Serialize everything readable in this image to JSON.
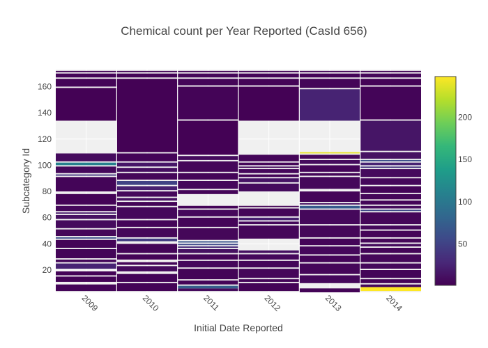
{
  "chart_data": {
    "type": "heatmap",
    "title": "Chemical count per Year Reported (CasId 656)",
    "xlabel": "Initial Date Reported",
    "ylabel": "Subcategory Id",
    "categories": [
      "2009",
      "2010",
      "2011",
      "2012",
      "2013",
      "2014"
    ],
    "ylim": [
      3,
      173
    ],
    "yticks": [
      20,
      40,
      60,
      80,
      100,
      120,
      140,
      160
    ],
    "colorscale": "Viridis",
    "colorscale_stops": [
      "#440154",
      "#482878",
      "#3e4989",
      "#31688e",
      "#26828e",
      "#1f9e89",
      "#35b779",
      "#6ece58",
      "#b5de2b",
      "#fde725"
    ],
    "zlim": [
      1,
      248
    ],
    "colorbar_ticks": [
      50,
      100,
      150,
      200
    ],
    "missing_color": "#f0f0f0",
    "columns": [
      {
        "year": "2009",
        "cells": [
          [
            4,
            9,
            4
          ],
          [
            11,
            15,
            3
          ],
          [
            16,
            19,
            3
          ],
          [
            21,
            25,
            25
          ],
          [
            26,
            28,
            6
          ],
          [
            29,
            36,
            4
          ],
          [
            37,
            43,
            3
          ],
          [
            44,
            45,
            60
          ],
          [
            46,
            51,
            5
          ],
          [
            52,
            58,
            8
          ],
          [
            59,
            62,
            12
          ],
          [
            63,
            64,
            18
          ],
          [
            65,
            69,
            6
          ],
          [
            70,
            78,
            3
          ],
          [
            80,
            91,
            4
          ],
          [
            92,
            93,
            40
          ],
          [
            94,
            99,
            6
          ],
          [
            100,
            102,
            110
          ],
          [
            103,
            109,
            8
          ],
          [
            134,
            159,
            2
          ],
          [
            160,
            166,
            3
          ],
          [
            167,
            170,
            4
          ],
          [
            171,
            172,
            5
          ]
        ]
      },
      {
        "year": "2010",
        "cells": [
          [
            4,
            10,
            3
          ],
          [
            11,
            17,
            4
          ],
          [
            19,
            23,
            8
          ],
          [
            24,
            26,
            5
          ],
          [
            28,
            32,
            3
          ],
          [
            33,
            40,
            4
          ],
          [
            42,
            44,
            45
          ],
          [
            45,
            52,
            5
          ],
          [
            53,
            58,
            4
          ],
          [
            59,
            68,
            6
          ],
          [
            69,
            72,
            3
          ],
          [
            73,
            75,
            12
          ],
          [
            76,
            80,
            6
          ],
          [
            81,
            84,
            22
          ],
          [
            85,
            88,
            50
          ],
          [
            89,
            94,
            5
          ],
          [
            95,
            98,
            10
          ],
          [
            99,
            102,
            16
          ],
          [
            103,
            109,
            4
          ],
          [
            110,
            166,
            2
          ],
          [
            167,
            170,
            3
          ],
          [
            171,
            172,
            5
          ]
        ]
      },
      {
        "year": "2011",
        "cells": [
          [
            4,
            6,
            8
          ],
          [
            6,
            8,
            75
          ],
          [
            9,
            12,
            4
          ],
          [
            13,
            21,
            3
          ],
          [
            22,
            27,
            6
          ],
          [
            28,
            32,
            4
          ],
          [
            33,
            36,
            12
          ],
          [
            37,
            38,
            30
          ],
          [
            39,
            40,
            55
          ],
          [
            41,
            42,
            65
          ],
          [
            43,
            52,
            5
          ],
          [
            53,
            60,
            4
          ],
          [
            61,
            66,
            6
          ],
          [
            67,
            69,
            3
          ],
          [
            78,
            81,
            4
          ],
          [
            82,
            88,
            6
          ],
          [
            89,
            94,
            4
          ],
          [
            95,
            103,
            5
          ],
          [
            104,
            107,
            8
          ],
          [
            108,
            134,
            2
          ],
          [
            135,
            160,
            3
          ],
          [
            161,
            166,
            4
          ],
          [
            167,
            170,
            5
          ],
          [
            171,
            172,
            3
          ]
        ]
      },
      {
        "year": "2012",
        "cells": [
          [
            4,
            10,
            3
          ],
          [
            11,
            13,
            4
          ],
          [
            14,
            21,
            5
          ],
          [
            22,
            27,
            4
          ],
          [
            28,
            32,
            6
          ],
          [
            33,
            35,
            12
          ],
          [
            44,
            54,
            5
          ],
          [
            55,
            57,
            6
          ],
          [
            58,
            60,
            22
          ],
          [
            61,
            67,
            4
          ],
          [
            68,
            69,
            3
          ],
          [
            80,
            86,
            8
          ],
          [
            87,
            90,
            14
          ],
          [
            91,
            93,
            4
          ],
          [
            94,
            97,
            6
          ],
          [
            98,
            99,
            8
          ],
          [
            100,
            102,
            5
          ],
          [
            103,
            108,
            4
          ],
          [
            134,
            160,
            2
          ],
          [
            161,
            166,
            3
          ],
          [
            167,
            170,
            4
          ],
          [
            171,
            172,
            5
          ]
        ]
      },
      {
        "year": "2013",
        "cells": [
          [
            3,
            6,
            3
          ],
          [
            10,
            16,
            6
          ],
          [
            17,
            25,
            5
          ],
          [
            26,
            31,
            4
          ],
          [
            32,
            38,
            6
          ],
          [
            39,
            44,
            4
          ],
          [
            45,
            54,
            5
          ],
          [
            55,
            66,
            6
          ],
          [
            67,
            69,
            70
          ],
          [
            70,
            71,
            12
          ],
          [
            72,
            80,
            4
          ],
          [
            82,
            91,
            6
          ],
          [
            92,
            94,
            5
          ],
          [
            95,
            100,
            4
          ],
          [
            101,
            104,
            8
          ],
          [
            105,
            108,
            5
          ],
          [
            109,
            110,
            240
          ],
          [
            134,
            158,
            25
          ],
          [
            159,
            166,
            4
          ],
          [
            167,
            170,
            3
          ],
          [
            171,
            172,
            5
          ]
        ]
      },
      {
        "year": "2014",
        "cells": [
          [
            4,
            7,
            248
          ],
          [
            7,
            9,
            6
          ],
          [
            10,
            13,
            3
          ],
          [
            14,
            20,
            4
          ],
          [
            21,
            25,
            6
          ],
          [
            26,
            32,
            5
          ],
          [
            33,
            37,
            4
          ],
          [
            38,
            40,
            8
          ],
          [
            41,
            44,
            5
          ],
          [
            45,
            50,
            4
          ],
          [
            51,
            54,
            6
          ],
          [
            55,
            64,
            5
          ],
          [
            65,
            66,
            55
          ],
          [
            67,
            69,
            8
          ],
          [
            70,
            73,
            4
          ],
          [
            74,
            78,
            5
          ],
          [
            79,
            84,
            4
          ],
          [
            85,
            90,
            6
          ],
          [
            91,
            97,
            8
          ],
          [
            98,
            99,
            40
          ],
          [
            100,
            102,
            25
          ],
          [
            103,
            104,
            60
          ],
          [
            105,
            110,
            12
          ],
          [
            111,
            134,
            15
          ],
          [
            135,
            160,
            4
          ],
          [
            161,
            166,
            3
          ],
          [
            167,
            170,
            5
          ],
          [
            171,
            172,
            4
          ]
        ]
      }
    ]
  }
}
